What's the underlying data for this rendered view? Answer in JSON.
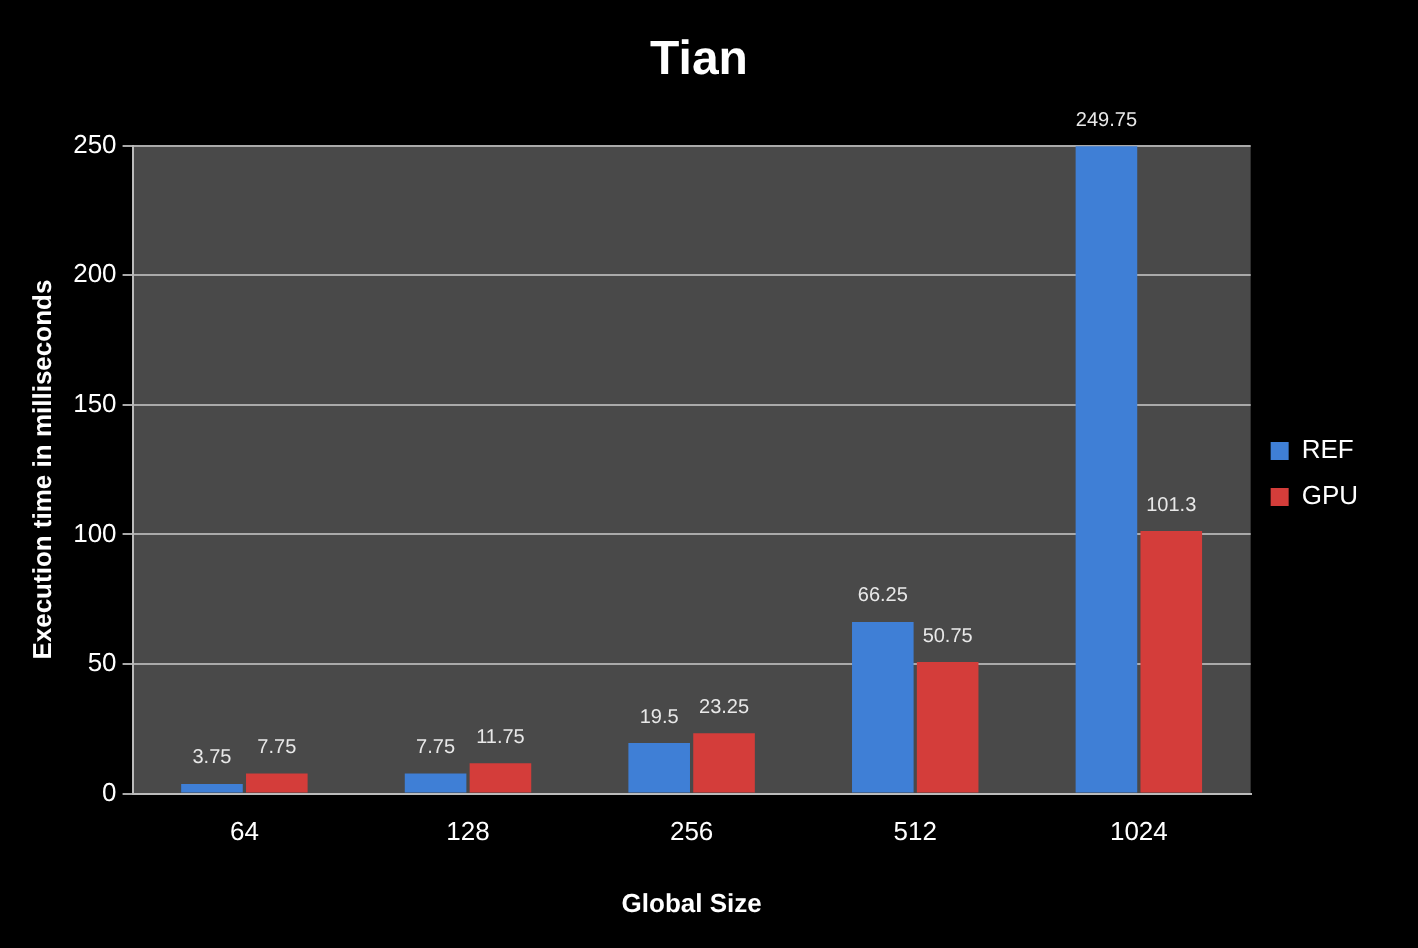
{
  "chart_data": {
    "type": "bar",
    "title": "Tian",
    "xlabel": "Global Size",
    "ylabel": "Execution time in milliseconds",
    "categories": [
      "64",
      "128",
      "256",
      "512",
      "1024"
    ],
    "series": [
      {
        "name": "REF",
        "color": "#3f7fd6",
        "values": [
          3.75,
          7.75,
          19.5,
          66.25,
          249.75
        ]
      },
      {
        "name": "GPU",
        "color": "#d43d3a",
        "values": [
          7.75,
          11.75,
          23.25,
          50.75,
          101.3
        ]
      }
    ],
    "ylim": [
      0,
      250
    ],
    "yticks": [
      0,
      50,
      100,
      150,
      200,
      250
    ],
    "grid": "y",
    "legend": "right",
    "data_labels": true
  }
}
